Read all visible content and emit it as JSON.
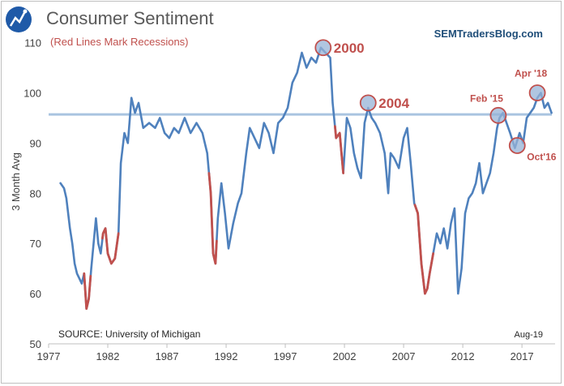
{
  "logo_icon": "sem-logo-icon",
  "chart_data": {
    "type": "line",
    "title": "Consumer Sentiment",
    "subtitle": "(Red Lines Mark Recessions)",
    "brand": "SEMTradersBlog.com",
    "ylabel": "3 Month Avg",
    "xlabel": "",
    "source": "SOURCE:  University of Michigan",
    "date_stamp": "Aug-19",
    "xlim": [
      1977.0,
      2019.8
    ],
    "ylim": [
      50,
      113
    ],
    "x_ticks": [
      1977,
      1982,
      1987,
      1992,
      1997,
      2002,
      2007,
      2012,
      2017
    ],
    "x_tick_labels": [
      "1977",
      "1982",
      "1987",
      "1992",
      "1997",
      "2002",
      "2007",
      "2012",
      "2017"
    ],
    "y_ticks": [
      50,
      60,
      70,
      80,
      90,
      100,
      110
    ],
    "y_tick_labels": [
      "50",
      "60",
      "70",
      "80",
      "90",
      "100",
      "110"
    ],
    "reference_line": 95.7,
    "colors": {
      "line": "#4f81bd",
      "recession": "#c0504d",
      "reference": "#a9c4e0",
      "annotation": "#c0504d",
      "circle_fill": "#95b3d7"
    },
    "recessions": [
      [
        1980.0,
        1980.55
      ],
      [
        1981.55,
        1982.9
      ],
      [
        1990.55,
        1991.2
      ],
      [
        2001.2,
        2001.9
      ],
      [
        2007.95,
        2009.5
      ]
    ],
    "series": [
      {
        "name": "Consumer Sentiment (3 Month Avg)",
        "x": [
          1978.0,
          1978.3,
          1978.5,
          1978.8,
          1979.0,
          1979.2,
          1979.4,
          1979.6,
          1979.8,
          1980.0,
          1980.2,
          1980.4,
          1980.6,
          1980.8,
          1981.0,
          1981.2,
          1981.4,
          1981.6,
          1981.8,
          1982.0,
          1982.3,
          1982.6,
          1982.9,
          1983.1,
          1983.4,
          1983.7,
          1984.0,
          1984.3,
          1984.6,
          1985.0,
          1985.5,
          1986.0,
          1986.4,
          1986.8,
          1987.2,
          1987.6,
          1988.0,
          1988.5,
          1989.0,
          1989.5,
          1990.0,
          1990.4,
          1990.7,
          1990.9,
          1991.1,
          1991.3,
          1991.6,
          1991.9,
          1992.2,
          1992.6,
          1993.0,
          1993.3,
          1993.7,
          1994.0,
          1994.4,
          1994.8,
          1995.2,
          1995.6,
          1996.0,
          1996.4,
          1996.8,
          1997.2,
          1997.6,
          1998.0,
          1998.4,
          1998.8,
          1999.2,
          1999.6,
          2000.0,
          2000.4,
          2000.8,
          2001.0,
          2001.3,
          2001.6,
          2001.9,
          2002.2,
          2002.5,
          2002.8,
          2003.1,
          2003.4,
          2003.7,
          2004.0,
          2004.3,
          2004.6,
          2005.0,
          2005.4,
          2005.7,
          2005.9,
          2006.2,
          2006.6,
          2007.0,
          2007.3,
          2007.6,
          2007.9,
          2008.2,
          2008.5,
          2008.8,
          2009.0,
          2009.2,
          2009.5,
          2009.8,
          2010.1,
          2010.4,
          2010.7,
          2011.0,
          2011.3,
          2011.6,
          2011.9,
          2012.2,
          2012.5,
          2012.8,
          2013.1,
          2013.4,
          2013.7,
          2014.0,
          2014.3,
          2014.6,
          2014.9,
          2015.1,
          2015.4,
          2015.7,
          2016.0,
          2016.4,
          2016.8,
          2017.1,
          2017.4,
          2017.7,
          2018.0,
          2018.3,
          2018.6,
          2018.9,
          2019.2,
          2019.5
        ],
        "values": [
          82,
          81,
          79,
          73,
          70,
          66,
          64,
          63,
          62,
          64,
          57,
          59,
          65,
          70,
          75,
          70,
          68,
          72,
          73,
          68,
          66,
          67,
          72,
          86,
          92,
          90,
          99,
          96,
          98,
          93,
          94,
          93,
          95,
          92,
          91,
          93,
          92,
          95,
          92,
          94,
          92,
          88,
          80,
          68,
          66,
          75,
          82,
          76,
          69,
          74,
          78,
          80,
          88,
          93,
          91,
          89,
          94,
          92,
          88,
          94,
          95,
          97,
          102,
          104,
          108,
          105,
          107,
          106,
          109,
          108,
          107,
          98,
          91,
          92,
          84,
          95,
          93,
          88,
          85,
          83,
          94,
          97,
          95,
          94,
          92,
          88,
          80,
          88,
          87,
          85,
          91,
          93,
          86,
          78,
          76,
          66,
          60,
          61,
          64,
          68,
          72,
          70,
          73,
          69,
          74,
          77,
          60,
          65,
          76,
          79,
          80,
          82,
          86,
          80,
          82,
          84,
          88,
          93,
          95,
          96,
          94,
          92,
          89,
          92,
          90,
          95,
          96,
          97,
          99,
          100,
          97,
          98,
          96
        ]
      }
    ],
    "annotations": [
      {
        "label": "2000",
        "x": 2000.2,
        "y": 109,
        "style": "big",
        "anchor": "right"
      },
      {
        "label": "2004",
        "x": 2004.0,
        "y": 98,
        "style": "big",
        "anchor": "right"
      },
      {
        "label": "Feb '15",
        "x": 2015.0,
        "y": 95.5,
        "style": "small",
        "anchor": "left-above"
      },
      {
        "label": "Oct'16",
        "x": 2016.6,
        "y": 89.5,
        "style": "small",
        "anchor": "right-below"
      },
      {
        "label": "Apr '18",
        "x": 2018.3,
        "y": 100,
        "style": "small",
        "anchor": "above"
      }
    ]
  }
}
